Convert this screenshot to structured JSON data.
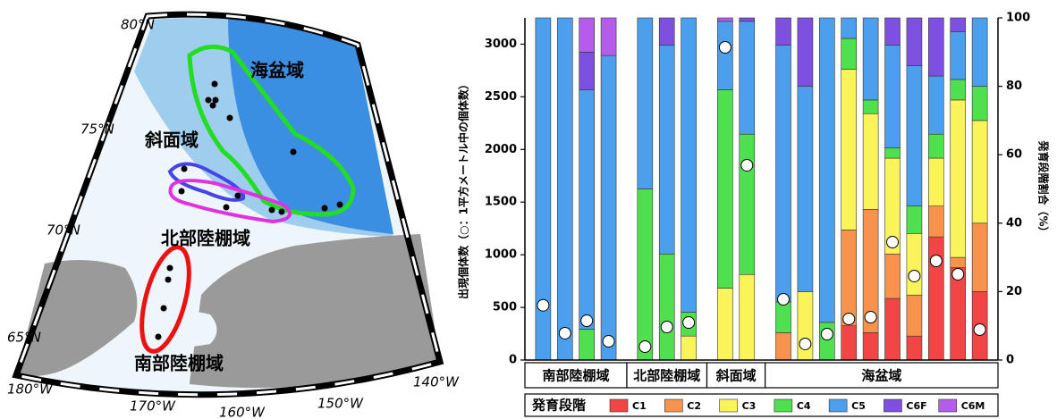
{
  "map": {
    "regions": [
      "海盆域",
      "斜面域",
      "北部陸棚域",
      "南部陸棚域"
    ],
    "lat_labels": [
      "80°N",
      "75°N",
      "70°N",
      "65°N"
    ],
    "lon_labels": [
      "180°W",
      "170°W",
      "160°W",
      "150°W",
      "140°W"
    ]
  },
  "chart_data": {
    "type": "stacked_bar",
    "y_label": "出現個体数（○：1平方メートル中の個体数）",
    "y2_label": "発育段階割合（%）",
    "legend_title": "発育段階",
    "ylim": [
      0,
      3250
    ],
    "yticks": [
      0,
      500,
      1000,
      1500,
      2000,
      2500,
      3000
    ],
    "y2lim": [
      0,
      100
    ],
    "y2ticks": [
      0,
      20,
      40,
      60,
      80,
      100
    ],
    "groups": [
      {
        "label": "南部陸棚域",
        "span": 4
      },
      {
        "label": "北部陸棚域",
        "span": 3
      },
      {
        "label": "斜面域",
        "span": 2
      },
      {
        "label": "海盆域",
        "span": 10
      }
    ],
    "series": [
      {
        "name": "C1",
        "color": "#f04646",
        "axis": "y2",
        "values": [
          0,
          0,
          0,
          0,
          0,
          0,
          0,
          0,
          0,
          0,
          0,
          0,
          10,
          8,
          18,
          7,
          36,
          27,
          20
        ]
      },
      {
        "name": "C2",
        "color": "#f7934c",
        "axis": "y2",
        "values": [
          0,
          0,
          0,
          0,
          0,
          0,
          0,
          0,
          0,
          8,
          0,
          0,
          28,
          36,
          13,
          12,
          9,
          3,
          20
        ]
      },
      {
        "name": "C3",
        "color": "#fbf35a",
        "axis": "y2",
        "values": [
          0,
          0,
          0,
          0,
          0,
          0,
          7,
          21,
          25,
          0,
          20,
          0,
          47,
          28,
          28,
          18,
          14,
          46,
          30
        ]
      },
      {
        "name": "C4",
        "color": "#4fe04f",
        "axis": "y2",
        "values": [
          0,
          0,
          9,
          0,
          50,
          31,
          7,
          58,
          41,
          9,
          0,
          11,
          9,
          4,
          3,
          8,
          7,
          6,
          10
        ]
      },
      {
        "name": "C5",
        "color": "#4b9fec",
        "axis": "y2",
        "values": [
          100,
          100,
          70,
          89,
          50,
          61,
          86,
          20,
          33,
          75,
          60,
          89,
          6,
          24,
          30,
          41,
          17,
          14,
          20
        ]
      },
      {
        "name": "C6F",
        "color": "#7d50e0",
        "axis": "y2",
        "values": [
          0,
          0,
          11,
          0,
          0,
          8,
          0,
          0,
          1,
          8,
          20,
          0,
          0,
          0,
          8,
          14,
          17,
          4,
          0
        ]
      },
      {
        "name": "C6M",
        "color": "#b65ced",
        "axis": "y2",
        "values": [
          0,
          0,
          10,
          11,
          0,
          0,
          0,
          1,
          0,
          0,
          0,
          0,
          0,
          0,
          0,
          0,
          0,
          0,
          0
        ]
      }
    ],
    "abundance": [
      520,
      255,
      373,
      178,
      127,
      314,
      356,
      2970,
      1850,
      577,
      153,
      246,
      390,
      407,
      1120,
      798,
      942,
      815,
      289
    ]
  }
}
